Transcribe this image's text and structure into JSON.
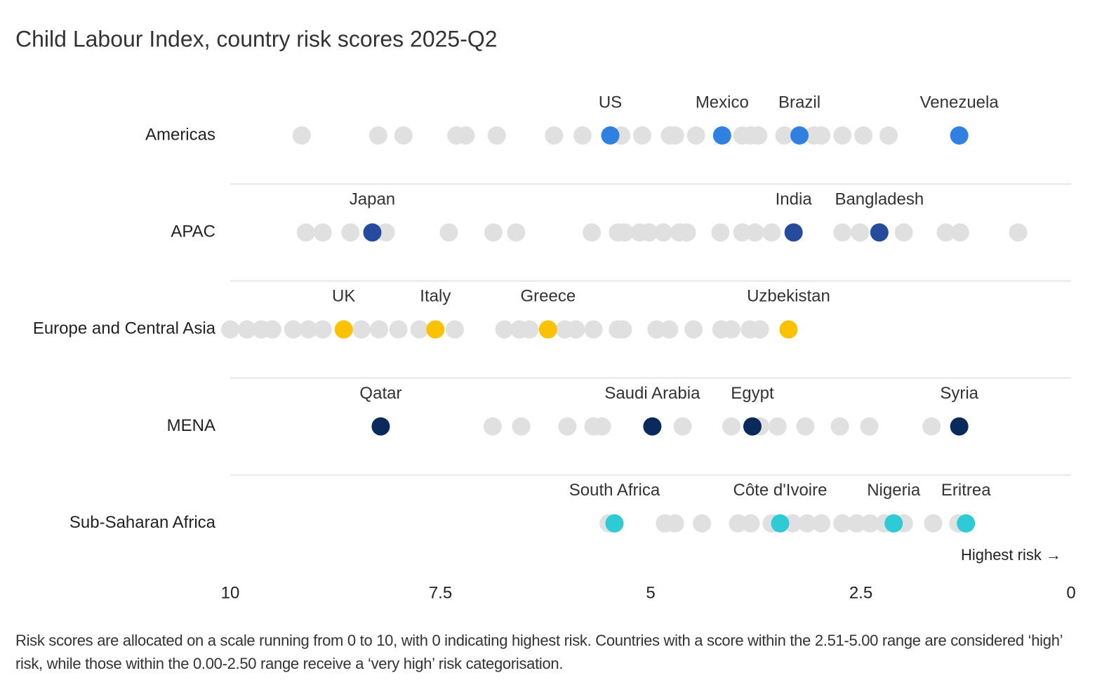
{
  "chart_data": {
    "type": "strip",
    "title": "Child Labour Index, country risk scores 2025-Q2",
    "annotation": "Highest risk →",
    "note": "Risk scores are allocated on a scale running from 0 to 10, with 0 indicating highest risk. Countries with a score within the 2.51-5.00 range are considered ‘high’ risk, while those within the 0.00-2.50 range receive a ‘very high’ risk categorisation.",
    "xlim": [
      10,
      0
    ],
    "xticks": [
      10,
      7.5,
      5,
      2.5,
      0
    ],
    "other_color": "#e0e0e0",
    "series": [
      {
        "name": "Americas",
        "color": "#2f80e0",
        "values": [
          9.15,
          8.24,
          7.94,
          7.31,
          7.2,
          6.83,
          6.15,
          5.81,
          5.35,
          5.1,
          4.77,
          4.71,
          4.46,
          3.91,
          3.81,
          3.72,
          3.41,
          3.06,
          2.97,
          2.72,
          2.47,
          2.17
        ],
        "highlight_names": [
          "US",
          "Mexico",
          "Brazil",
          "Venezuela"
        ],
        "highlight_values": [
          5.48,
          4.15,
          3.23,
          1.33
        ]
      },
      {
        "name": "APAC",
        "color": "#264b9c",
        "values": [
          9.1,
          8.9,
          8.57,
          8.15,
          7.4,
          6.87,
          6.6,
          5.7,
          5.39,
          5.31,
          5.13,
          5.02,
          4.85,
          4.66,
          4.57,
          4.17,
          3.91,
          3.76,
          3.56,
          2.72,
          2.51,
          1.99,
          1.49,
          1.32,
          0.63
        ],
        "highlight_names": [
          "Japan",
          "India",
          "Bangladesh"
        ],
        "highlight_values": [
          8.31,
          3.3,
          2.28
        ]
      },
      {
        "name": "Europe and Central Asia",
        "color": "#fcc200",
        "values": [
          10.0,
          9.8,
          9.63,
          9.5,
          9.25,
          9.07,
          8.9,
          8.44,
          8.23,
          8.0,
          7.75,
          7.33,
          6.74,
          6.56,
          6.44,
          6.02,
          5.89,
          5.68,
          5.39,
          5.33,
          4.93,
          4.78,
          4.49,
          4.16,
          4.04,
          3.82,
          3.7
        ],
        "highlight_names": [
          "UK",
          "Italy",
          "Greece",
          "Uzbekistan"
        ],
        "highlight_values": [
          8.65,
          7.56,
          6.22,
          3.36
        ]
      },
      {
        "name": "MENA",
        "color": "#0a2a5c",
        "values": [
          6.88,
          6.54,
          5.99,
          5.68,
          5.58,
          4.62,
          4.04,
          3.7,
          3.49,
          3.16,
          2.75,
          2.4,
          1.66
        ],
        "highlight_names": [
          "Qatar",
          "Saudi Arabia",
          "Egypt",
          "Syria"
        ],
        "highlight_values": [
          8.21,
          4.98,
          3.79,
          1.33
        ]
      },
      {
        "name": "Sub-Saharan Africa",
        "color": "#2ecad6",
        "values": [
          5.5,
          4.83,
          4.71,
          4.39,
          3.96,
          3.81,
          3.56,
          3.31,
          3.14,
          2.97,
          2.72,
          2.55,
          2.39,
          2.22,
          1.99,
          1.64,
          1.34
        ],
        "highlight_names": [
          "South Africa",
          "Côte d'Ivoire",
          "Nigeria",
          "Eritrea"
        ],
        "highlight_values": [
          5.43,
          3.46,
          2.11,
          1.25
        ]
      }
    ]
  }
}
